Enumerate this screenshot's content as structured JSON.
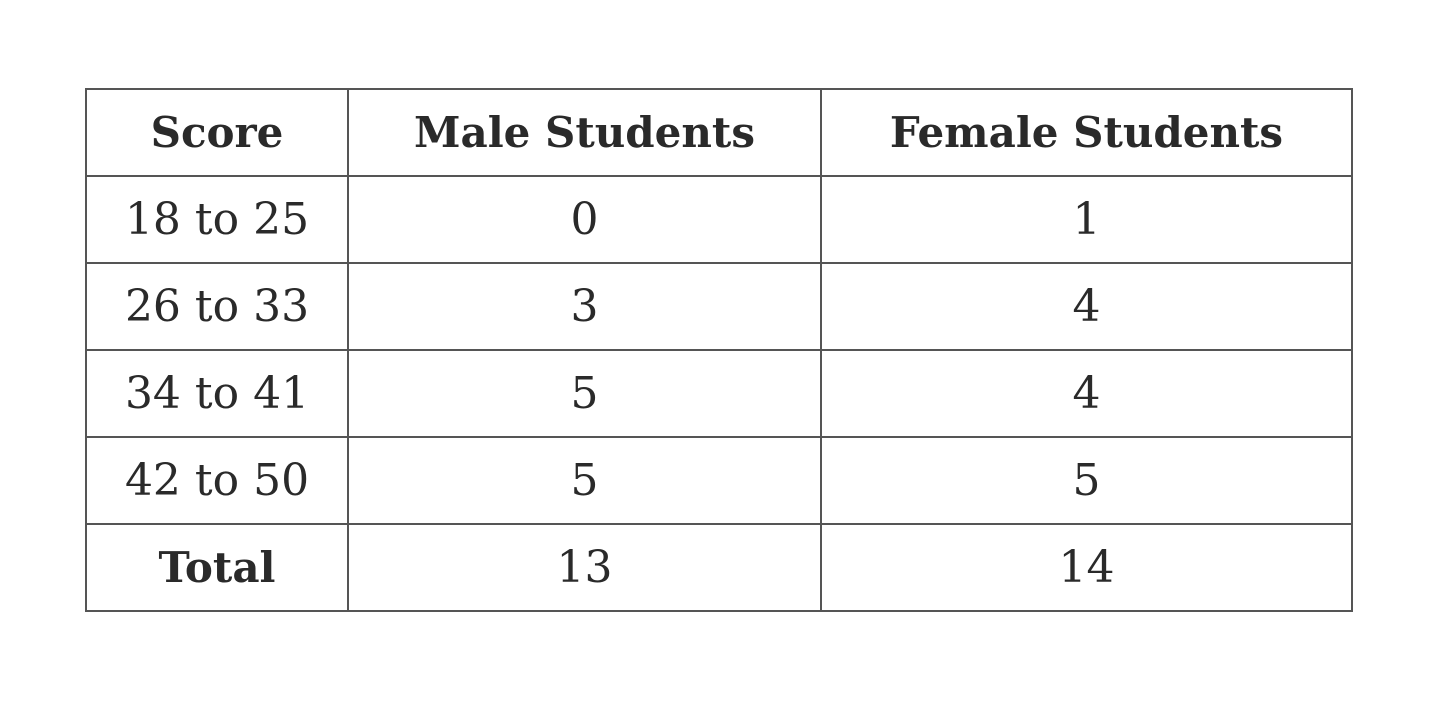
{
  "table": {
    "headers": [
      "Score",
      "Male Students",
      "Female Students"
    ],
    "rows": [
      [
        "18 to 25",
        "0",
        "1"
      ],
      [
        "26 to 33",
        "3",
        "4"
      ],
      [
        "34 to 41",
        "5",
        "4"
      ],
      [
        "42 to 50",
        "5",
        "5"
      ],
      [
        "Total",
        "13",
        "14"
      ]
    ]
  }
}
